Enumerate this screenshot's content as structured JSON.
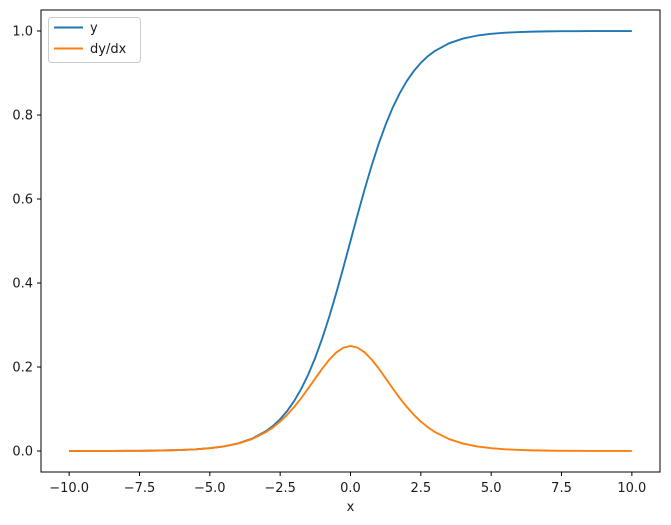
{
  "figure": {
    "background": "#ffffff",
    "text_color": "#1a1a1a",
    "spine_color": "#000000"
  },
  "legend": {
    "position": "upper left",
    "items": [
      {
        "label": "y",
        "color": "#1f77b4"
      },
      {
        "label": "dy/dx",
        "color": "#ff7f0e"
      }
    ]
  },
  "chart_data": {
    "type": "line",
    "title": "",
    "xlabel": "x",
    "ylabel": "",
    "xlim": [
      -11,
      11
    ],
    "ylim": [
      -0.05,
      1.05
    ],
    "grid": false,
    "legend_position": "upper left",
    "x_ticks": [
      -10.0,
      -7.5,
      -5.0,
      -2.5,
      0.0,
      2.5,
      5.0,
      7.5,
      10.0
    ],
    "x_tick_labels": [
      "−10.0",
      "−7.5",
      "−5.0",
      "−2.5",
      "0.0",
      "2.5",
      "5.0",
      "7.5",
      "10.0"
    ],
    "y_ticks": [
      0.0,
      0.2,
      0.4,
      0.6,
      0.8,
      1.0
    ],
    "y_tick_labels": [
      "0.0",
      "0.2",
      "0.4",
      "0.6",
      "0.8",
      "1.0"
    ],
    "x": [
      -10,
      -9.5,
      -9,
      -8.5,
      -8,
      -7.5,
      -7,
      -6.5,
      -6,
      -5.5,
      -5,
      -4.5,
      -4,
      -3.5,
      -3,
      -2.75,
      -2.5,
      -2.25,
      -2,
      -1.75,
      -1.5,
      -1.25,
      -1,
      -0.75,
      -0.5,
      -0.25,
      0,
      0.25,
      0.5,
      0.75,
      1,
      1.25,
      1.5,
      1.75,
      2,
      2.25,
      2.5,
      2.75,
      3,
      3.5,
      4,
      4.5,
      5,
      5.5,
      6,
      6.5,
      7,
      7.5,
      8,
      8.5,
      9,
      9.5,
      10
    ],
    "series": [
      {
        "name": "y",
        "color": "#1f77b4",
        "values": [
          5e-05,
          7e-05,
          0.00012,
          0.0002,
          0.00034,
          0.00055,
          0.00091,
          0.0015,
          0.00247,
          0.00407,
          0.00669,
          0.011,
          0.01799,
          0.02931,
          0.04743,
          0.06009,
          0.07586,
          0.09535,
          0.1192,
          0.14805,
          0.18243,
          0.2227,
          0.26894,
          0.32082,
          0.37754,
          0.43782,
          0.5,
          0.56218,
          0.62246,
          0.67918,
          0.73106,
          0.7773,
          0.81757,
          0.85195,
          0.8808,
          0.90465,
          0.92414,
          0.93991,
          0.95257,
          0.97069,
          0.98201,
          0.98901,
          0.99331,
          0.99593,
          0.99753,
          0.9985,
          0.99909,
          0.99945,
          0.99966,
          0.9998,
          0.99988,
          0.99993,
          0.99995
        ]
      },
      {
        "name": "dy/dx",
        "color": "#ff7f0e",
        "values": [
          5e-05,
          7e-05,
          0.00012,
          0.0002,
          0.00034,
          0.00055,
          0.00091,
          0.0015,
          0.00246,
          0.00405,
          0.00665,
          0.01088,
          0.01766,
          0.02845,
          0.04518,
          0.05648,
          0.0701,
          0.08626,
          0.10499,
          0.12613,
          0.14914,
          0.17313,
          0.19661,
          0.21789,
          0.235,
          0.24614,
          0.25,
          0.24614,
          0.235,
          0.21789,
          0.19661,
          0.17313,
          0.14914,
          0.12613,
          0.10499,
          0.08626,
          0.0701,
          0.05648,
          0.04518,
          0.02845,
          0.01766,
          0.01088,
          0.00665,
          0.00405,
          0.00246,
          0.0015,
          0.00091,
          0.00055,
          0.00034,
          0.0002,
          0.00012,
          7e-05,
          5e-05
        ]
      }
    ]
  }
}
